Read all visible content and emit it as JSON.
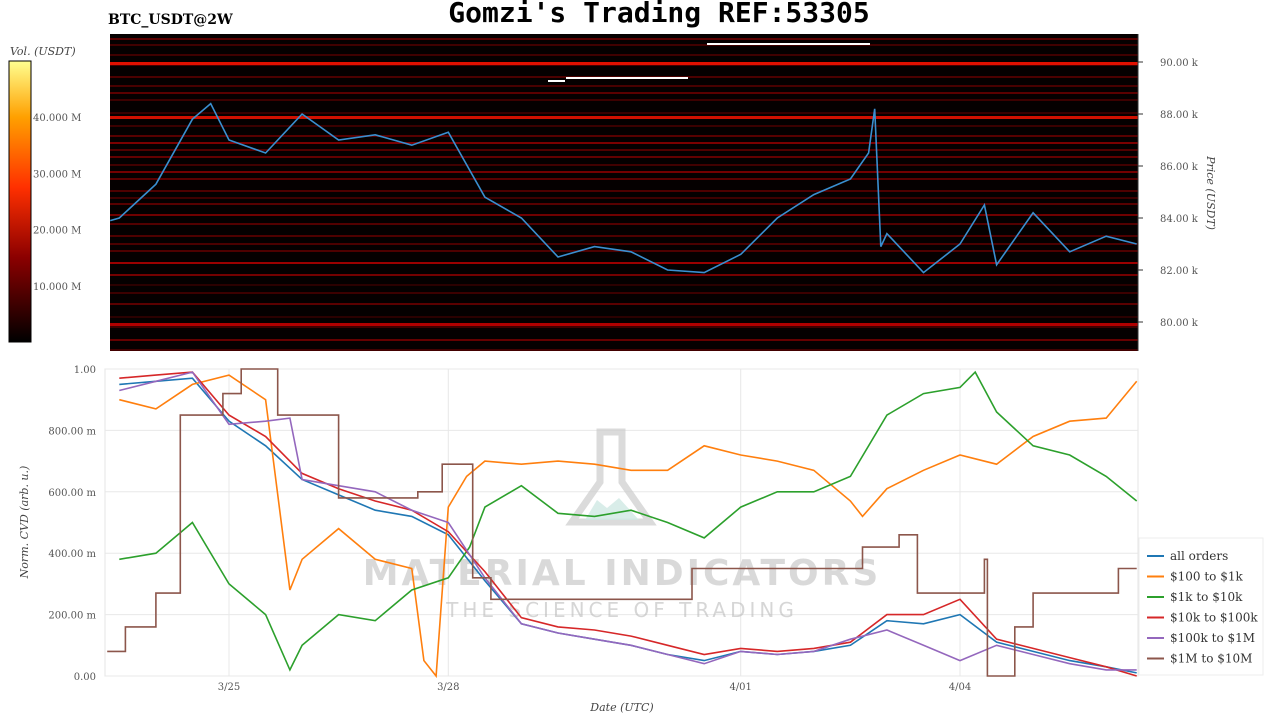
{
  "title": "Gomzi's Trading REF:53305",
  "symbol": "BTC_USDT@2W",
  "watermark": {
    "line1": "MATERIAL INDICATORS",
    "line2": "THE SCIENCE OF TRADING"
  },
  "chart_data": [
    {
      "type": "heatmap",
      "colorbar": {
        "label": "Vol. (USDT)",
        "ticks": [
          "10.000 M",
          "20.000 M",
          "30.000 M",
          "40.000 M"
        ],
        "tick_values": [
          10,
          20,
          30,
          40
        ],
        "range": [
          0,
          50
        ],
        "colors": [
          "#000000",
          "#8b0000",
          "#ff3000",
          "#ffa000",
          "#ffff80"
        ]
      },
      "ylabel": "Price (USDT)",
      "yticks": [
        "80.00 k",
        "82.00 k",
        "84.00 k",
        "86.00 k",
        "88.00 k",
        "90.00 k"
      ],
      "ytick_values": [
        80,
        82,
        84,
        86,
        88,
        90
      ],
      "ylim": [
        79.0,
        91.1
      ],
      "price_series": {
        "color": "#3a8fd0",
        "points": [
          [
            "3/23 09:00",
            83.9
          ],
          [
            "3/23 12:00",
            84.0
          ],
          [
            "3/24 00:00",
            85.3
          ],
          [
            "3/24 12:00",
            87.8
          ],
          [
            "3/24 18:00",
            88.4
          ],
          [
            "3/25 00:00",
            87.0
          ],
          [
            "3/25 12:00",
            86.5
          ],
          [
            "3/26 00:00",
            88.0
          ],
          [
            "3/26 12:00",
            87.0
          ],
          [
            "3/27 00:00",
            87.2
          ],
          [
            "3/27 12:00",
            86.8
          ],
          [
            "3/28 00:00",
            87.3
          ],
          [
            "3/28 12:00",
            84.8
          ],
          [
            "3/29 00:00",
            84.0
          ],
          [
            "3/29 12:00",
            82.5
          ],
          [
            "3/30 00:00",
            82.9
          ],
          [
            "3/30 12:00",
            82.7
          ],
          [
            "3/31 00:00",
            82.0
          ],
          [
            "3/31 12:00",
            81.9
          ],
          [
            "4/01 00:00",
            82.6
          ],
          [
            "4/01 12:00",
            84.0
          ],
          [
            "4/02 00:00",
            84.9
          ],
          [
            "4/02 12:00",
            85.5
          ],
          [
            "4/02 18:00",
            86.5
          ],
          [
            "4/02 20:00",
            88.2
          ],
          [
            "4/02 22:00",
            82.9
          ],
          [
            "4/03 00:00",
            83.4
          ],
          [
            "4/03 12:00",
            81.9
          ],
          [
            "4/04 00:00",
            83.0
          ],
          [
            "4/04 08:00",
            84.5
          ],
          [
            "4/04 12:00",
            82.2
          ],
          [
            "4/05 00:00",
            84.2
          ],
          [
            "4/05 12:00",
            82.7
          ],
          [
            "4/06 00:00",
            83.3
          ],
          [
            "4/06 10:00",
            83.0
          ]
        ]
      }
    },
    {
      "type": "line",
      "xlabel": "Date (UTC)",
      "ylabel": "Norm. CVD (arb. u.)",
      "xticks": [
        "3/25",
        "3/28",
        "4/01",
        "4/04"
      ],
      "yticks": [
        "0.00",
        "200.00 m",
        "400.00 m",
        "600.00 m",
        "800.00 m",
        "1.00"
      ],
      "ytick_values": [
        0,
        0.2,
        0.4,
        0.6,
        0.8,
        1.0
      ],
      "ylim": [
        0,
        1
      ],
      "grid": true,
      "legend": "right",
      "series": [
        {
          "name": "all orders",
          "color": "#1f77b4",
          "points": [
            [
              "3/23 12:00",
              0.95
            ],
            [
              "3/24 00:00",
              0.96
            ],
            [
              "3/24 12:00",
              0.97
            ],
            [
              "3/25 00:00",
              0.83
            ],
            [
              "3/25 12:00",
              0.75
            ],
            [
              "3/26 00:00",
              0.64
            ],
            [
              "3/26 12:00",
              0.59
            ],
            [
              "3/27 00:00",
              0.54
            ],
            [
              "3/27 12:00",
              0.52
            ],
            [
              "3/28 00:00",
              0.46
            ],
            [
              "3/28 12:00",
              0.31
            ],
            [
              "3/29 00:00",
              0.17
            ],
            [
              "3/29 12:00",
              0.14
            ],
            [
              "3/30 00:00",
              0.12
            ],
            [
              "3/30 12:00",
              0.1
            ],
            [
              "3/31 00:00",
              0.07
            ],
            [
              "3/31 12:00",
              0.05
            ],
            [
              "4/01 00:00",
              0.08
            ],
            [
              "4/01 12:00",
              0.07
            ],
            [
              "4/02 00:00",
              0.08
            ],
            [
              "4/02 12:00",
              0.1
            ],
            [
              "4/03 00:00",
              0.18
            ],
            [
              "4/03 12:00",
              0.17
            ],
            [
              "4/04 00:00",
              0.2
            ],
            [
              "4/04 12:00",
              0.11
            ],
            [
              "4/05 00:00",
              0.08
            ],
            [
              "4/05 12:00",
              0.05
            ],
            [
              "4/06 00:00",
              0.03
            ],
            [
              "4/06 10:00",
              0.01
            ]
          ]
        },
        {
          "name": "$100 to $1k",
          "color": "#ff7f0e",
          "points": [
            [
              "3/23 12:00",
              0.9
            ],
            [
              "3/24 00:00",
              0.87
            ],
            [
              "3/24 12:00",
              0.95
            ],
            [
              "3/25 00:00",
              0.98
            ],
            [
              "3/25 12:00",
              0.9
            ],
            [
              "3/25 20:00",
              0.28
            ],
            [
              "3/26 00:00",
              0.38
            ],
            [
              "3/26 12:00",
              0.48
            ],
            [
              "3/27 00:00",
              0.38
            ],
            [
              "3/27 12:00",
              0.35
            ],
            [
              "3/27 16:00",
              0.05
            ],
            [
              "3/27 20:00",
              0.0
            ],
            [
              "3/28 00:00",
              0.55
            ],
            [
              "3/28 06:00",
              0.65
            ],
            [
              "3/28 12:00",
              0.7
            ],
            [
              "3/29 00:00",
              0.69
            ],
            [
              "3/29 12:00",
              0.7
            ],
            [
              "3/30 00:00",
              0.69
            ],
            [
              "3/30 12:00",
              0.67
            ],
            [
              "3/31 00:00",
              0.67
            ],
            [
              "3/31 12:00",
              0.75
            ],
            [
              "4/01 00:00",
              0.72
            ],
            [
              "4/01 12:00",
              0.7
            ],
            [
              "4/02 00:00",
              0.67
            ],
            [
              "4/02 12:00",
              0.57
            ],
            [
              "4/02 16:00",
              0.52
            ],
            [
              "4/03 00:00",
              0.61
            ],
            [
              "4/03 12:00",
              0.67
            ],
            [
              "4/04 00:00",
              0.72
            ],
            [
              "4/04 12:00",
              0.69
            ],
            [
              "4/05 00:00",
              0.78
            ],
            [
              "4/05 12:00",
              0.83
            ],
            [
              "4/06 00:00",
              0.84
            ],
            [
              "4/06 10:00",
              0.96
            ]
          ]
        },
        {
          "name": "$1k to $10k",
          "color": "#2ca02c",
          "points": [
            [
              "3/23 12:00",
              0.38
            ],
            [
              "3/24 00:00",
              0.4
            ],
            [
              "3/24 12:00",
              0.5
            ],
            [
              "3/25 00:00",
              0.3
            ],
            [
              "3/25 12:00",
              0.2
            ],
            [
              "3/25 20:00",
              0.02
            ],
            [
              "3/26 00:00",
              0.1
            ],
            [
              "3/26 12:00",
              0.2
            ],
            [
              "3/27 00:00",
              0.18
            ],
            [
              "3/27 12:00",
              0.28
            ],
            [
              "3/28 00:00",
              0.32
            ],
            [
              "3/28 07:00",
              0.42
            ],
            [
              "3/28 12:00",
              0.55
            ],
            [
              "3/29 00:00",
              0.62
            ],
            [
              "3/29 12:00",
              0.53
            ],
            [
              "3/30 00:00",
              0.52
            ],
            [
              "3/30 12:00",
              0.54
            ],
            [
              "3/31 00:00",
              0.5
            ],
            [
              "3/31 12:00",
              0.45
            ],
            [
              "4/01 00:00",
              0.55
            ],
            [
              "4/01 12:00",
              0.6
            ],
            [
              "4/02 00:00",
              0.6
            ],
            [
              "4/02 12:00",
              0.65
            ],
            [
              "4/03 00:00",
              0.85
            ],
            [
              "4/03 12:00",
              0.92
            ],
            [
              "4/04 00:00",
              0.94
            ],
            [
              "4/04 05:00",
              0.99
            ],
            [
              "4/04 12:00",
              0.86
            ],
            [
              "4/05 00:00",
              0.75
            ],
            [
              "4/05 12:00",
              0.72
            ],
            [
              "4/06 00:00",
              0.65
            ],
            [
              "4/06 10:00",
              0.57
            ]
          ]
        },
        {
          "name": "$10k to $100k",
          "color": "#d62728",
          "points": [
            [
              "3/23 12:00",
              0.97
            ],
            [
              "3/24 00:00",
              0.98
            ],
            [
              "3/24 12:00",
              0.99
            ],
            [
              "3/25 00:00",
              0.85
            ],
            [
              "3/25 12:00",
              0.78
            ],
            [
              "3/26 00:00",
              0.66
            ],
            [
              "3/26 12:00",
              0.61
            ],
            [
              "3/27 00:00",
              0.57
            ],
            [
              "3/27 12:00",
              0.54
            ],
            [
              "3/28 00:00",
              0.47
            ],
            [
              "3/28 12:00",
              0.34
            ],
            [
              "3/29 00:00",
              0.19
            ],
            [
              "3/29 12:00",
              0.16
            ],
            [
              "3/30 00:00",
              0.15
            ],
            [
              "3/30 12:00",
              0.13
            ],
            [
              "3/31 00:00",
              0.1
            ],
            [
              "3/31 12:00",
              0.07
            ],
            [
              "4/01 00:00",
              0.09
            ],
            [
              "4/01 12:00",
              0.08
            ],
            [
              "4/02 00:00",
              0.09
            ],
            [
              "4/02 12:00",
              0.11
            ],
            [
              "4/03 00:00",
              0.2
            ],
            [
              "4/03 12:00",
              0.2
            ],
            [
              "4/04 00:00",
              0.25
            ],
            [
              "4/04 12:00",
              0.12
            ],
            [
              "4/05 00:00",
              0.09
            ],
            [
              "4/05 12:00",
              0.06
            ],
            [
              "4/06 00:00",
              0.03
            ],
            [
              "4/06 10:00",
              0.0
            ]
          ]
        },
        {
          "name": "$100k to $1M",
          "color": "#9467bd",
          "points": [
            [
              "3/23 12:00",
              0.93
            ],
            [
              "3/24 00:00",
              0.96
            ],
            [
              "3/24 12:00",
              0.99
            ],
            [
              "3/25 00:00",
              0.82
            ],
            [
              "3/25 12:00",
              0.83
            ],
            [
              "3/25 20:00",
              0.84
            ],
            [
              "3/26 00:00",
              0.64
            ],
            [
              "3/26 12:00",
              0.62
            ],
            [
              "3/27 00:00",
              0.6
            ],
            [
              "3/27 12:00",
              0.54
            ],
            [
              "3/28 00:00",
              0.5
            ],
            [
              "3/28 12:00",
              0.32
            ],
            [
              "3/29 00:00",
              0.17
            ],
            [
              "3/29 12:00",
              0.14
            ],
            [
              "3/30 00:00",
              0.12
            ],
            [
              "3/30 12:00",
              0.1
            ],
            [
              "3/31 00:00",
              0.07
            ],
            [
              "3/31 12:00",
              0.04
            ],
            [
              "4/01 00:00",
              0.08
            ],
            [
              "4/01 12:00",
              0.07
            ],
            [
              "4/02 00:00",
              0.08
            ],
            [
              "4/02 12:00",
              0.12
            ],
            [
              "4/03 00:00",
              0.15
            ],
            [
              "4/03 12:00",
              0.1
            ],
            [
              "4/04 00:00",
              0.05
            ],
            [
              "4/04 12:00",
              0.1
            ],
            [
              "4/05 00:00",
              0.07
            ],
            [
              "4/05 12:00",
              0.04
            ],
            [
              "4/06 00:00",
              0.02
            ],
            [
              "4/06 10:00",
              0.02
            ]
          ]
        },
        {
          "name": "$1M to $10M",
          "color": "#8c564b",
          "step": true,
          "points": [
            [
              "3/23 08:00",
              0.08
            ],
            [
              "3/23 14:00",
              0.16
            ],
            [
              "3/24 00:00",
              0.27
            ],
            [
              "3/24 08:00",
              0.85
            ],
            [
              "3/24 22:00",
              0.92
            ],
            [
              "3/25 04:00",
              1.0
            ],
            [
              "3/25 16:00",
              0.85
            ],
            [
              "3/26 12:00",
              0.58
            ],
            [
              "3/27 14:00",
              0.6
            ],
            [
              "3/27 22:00",
              0.69
            ],
            [
              "3/28 08:00",
              0.32
            ],
            [
              "3/28 14:00",
              0.25
            ],
            [
              "3/31 08:00",
              0.35
            ],
            [
              "4/02 16:00",
              0.42
            ],
            [
              "4/03 04:00",
              0.46
            ],
            [
              "4/03 10:00",
              0.27
            ],
            [
              "4/04 08:00",
              0.38
            ],
            [
              "4/04 09:00",
              0.0
            ],
            [
              "4/04 18:00",
              0.16
            ],
            [
              "4/05 00:00",
              0.27
            ],
            [
              "4/06 04:00",
              0.35
            ],
            [
              "4/06 10:00",
              0.35
            ]
          ]
        }
      ]
    }
  ]
}
